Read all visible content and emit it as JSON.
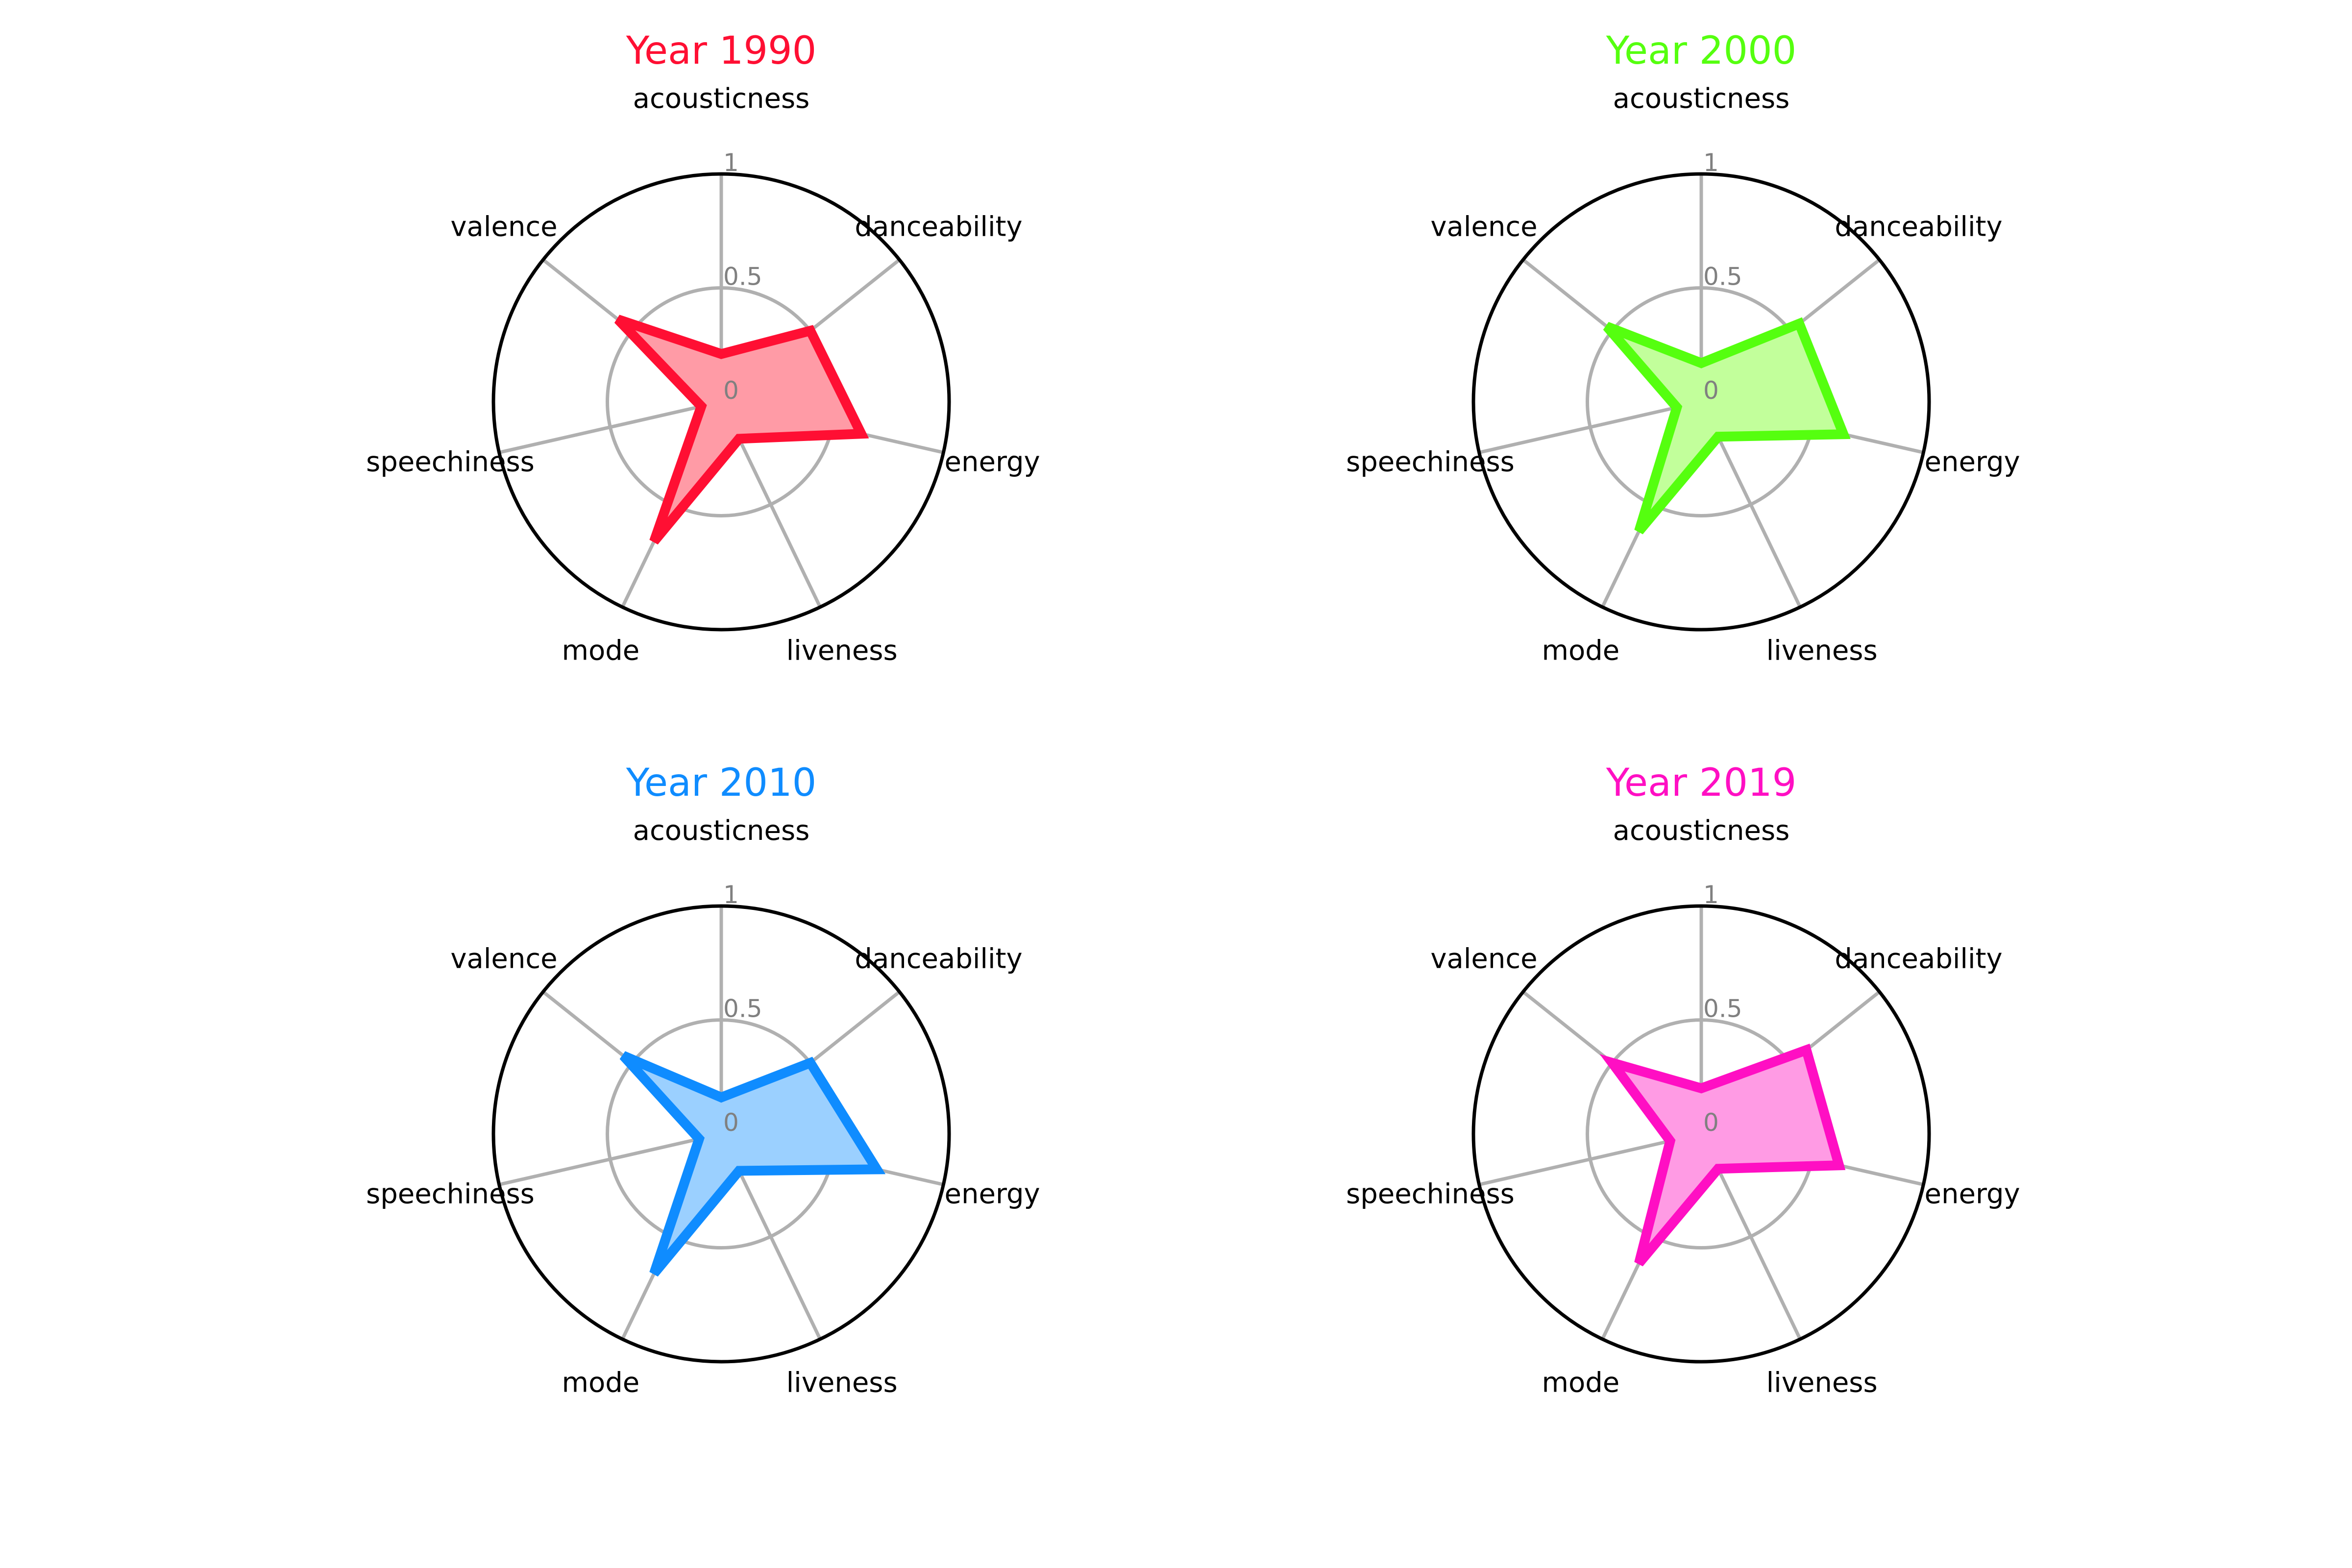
{
  "chart_data": [
    {
      "type": "radar",
      "title": "Year 1990",
      "color": "#ff0f33",
      "fill": "#ff9ba6",
      "axes": [
        "acousticness",
        "danceability",
        "energy",
        "liveness",
        "mode",
        "speechiness",
        "valence"
      ],
      "rticks": [
        "0",
        "0.5",
        "1"
      ],
      "rlim": [
        0,
        1
      ],
      "values": [
        0.21,
        0.5,
        0.63,
        0.18,
        0.68,
        0.09,
        0.58
      ]
    },
    {
      "type": "radar",
      "title": "Year 2000",
      "color": "#55ff0f",
      "fill": "#c2ff9b",
      "axes": [
        "acousticness",
        "danceability",
        "energy",
        "liveness",
        "mode",
        "speechiness",
        "valence"
      ],
      "rticks": [
        "0",
        "0.5",
        "1"
      ],
      "rlim": [
        0,
        1
      ],
      "values": [
        0.17,
        0.55,
        0.64,
        0.17,
        0.63,
        0.11,
        0.53
      ]
    },
    {
      "type": "radar",
      "title": "Year 2010",
      "color": "#0f8cff",
      "fill": "#9bd0ff",
      "axes": [
        "acousticness",
        "danceability",
        "energy",
        "liveness",
        "mode",
        "speechiness",
        "valence"
      ],
      "rticks": [
        "0",
        "0.5",
        "1"
      ],
      "rlim": [
        0,
        1
      ],
      "values": [
        0.16,
        0.5,
        0.7,
        0.18,
        0.68,
        0.1,
        0.55
      ]
    },
    {
      "type": "radar",
      "title": "Year 2019",
      "color": "#ff0fc3",
      "fill": "#ff9be4",
      "axes": [
        "acousticness",
        "danceability",
        "energy",
        "liveness",
        "mode",
        "speechiness",
        "valence"
      ],
      "rticks": [
        "0",
        "0.5",
        "1"
      ],
      "rlim": [
        0,
        1
      ],
      "values": [
        0.2,
        0.59,
        0.62,
        0.17,
        0.63,
        0.14,
        0.5
      ]
    }
  ]
}
